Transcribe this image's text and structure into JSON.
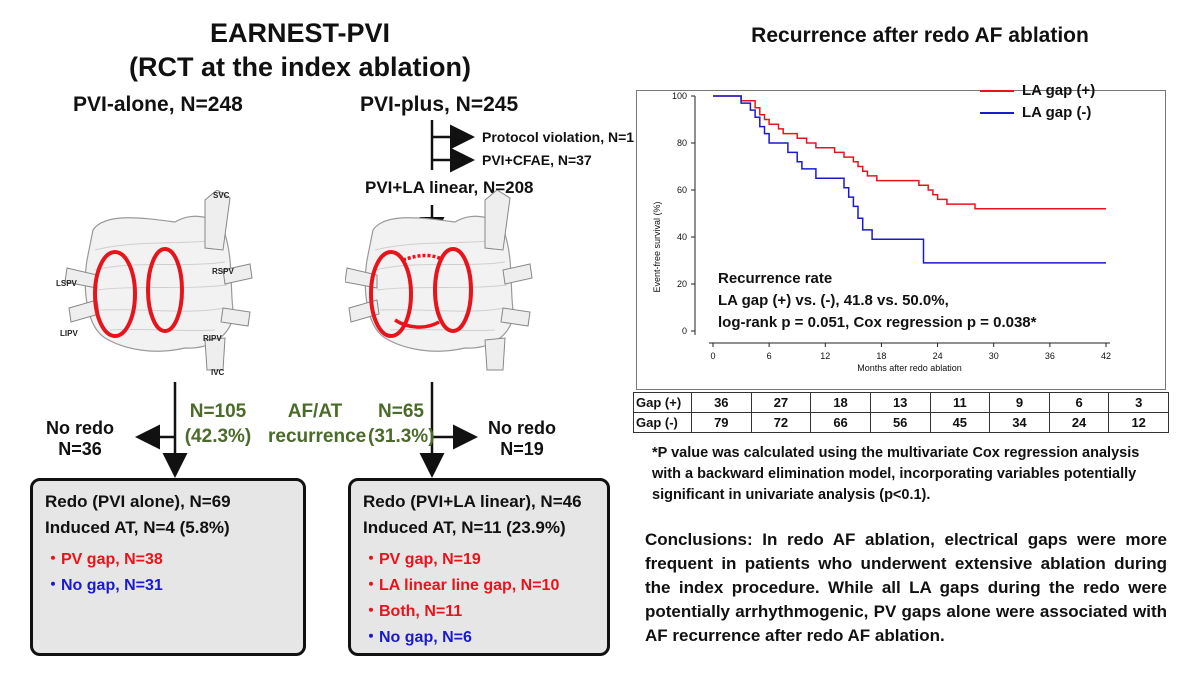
{
  "left": {
    "title_line1": "EARNEST-PVI",
    "title_line2": "(RCT at the index ablation)",
    "arm_left": "PVI-alone, N=248",
    "arm_right": "PVI-plus, N=245",
    "branch1": "Protocol violation, N=1",
    "branch2": "PVI+CFAE, N=37",
    "pvi_la_linear": "PVI+LA linear, N=208",
    "anatomy": {
      "svc": "SVC",
      "lspv": "LSPV",
      "rspv": "RSPV",
      "lipv": "LIPV",
      "ripv": "RIPV",
      "ivc": "IVC"
    },
    "no_redo_left": "No redo",
    "no_redo_left_n": "N=36",
    "rec_left_n": "N=105",
    "rec_left_pct": "(42.3%)",
    "recurrence_label1": "AF/AT",
    "recurrence_label2": "recurrence",
    "rec_right_n": "N=65",
    "rec_right_pct": "(31.3%)",
    "no_redo_right": "No redo",
    "no_redo_right_n": "N=19",
    "box_left": {
      "line1": "Redo (PVI alone), N=69",
      "line2": "Induced AT, N=4 (5.8%)",
      "items": [
        {
          "text": "・PV gap, N=38",
          "color": "#e8141b"
        },
        {
          "text": "・No gap, N=31",
          "color": "#1a1acc"
        }
      ]
    },
    "box_right": {
      "line1": "Redo (PVI+LA linear), N=46",
      "line2": "Induced AT, N=11 (23.9%)",
      "items": [
        {
          "text": "・PV gap, N=19",
          "color": "#e8141b"
        },
        {
          "text": "・LA linear line gap, N=10",
          "color": "#e8141b"
        },
        {
          "text": "・Both, N=11",
          "color": "#e8141b"
        },
        {
          "text": "・No gap, N=6",
          "color": "#1a1acc"
        }
      ]
    }
  },
  "chart_data": {
    "type": "line",
    "title": "Recurrence after redo AF ablation",
    "xlabel": "Months after redo ablation",
    "ylabel": "Event-free survival (%)",
    "xlim": [
      0,
      42
    ],
    "ylim": [
      0,
      100
    ],
    "xticks": [
      0,
      6,
      12,
      18,
      24,
      30,
      36,
      42
    ],
    "yticks": [
      0,
      20,
      40,
      60,
      80,
      100
    ],
    "series": [
      {
        "name": "LA gap (+)",
        "color": "#e8141b",
        "steps": [
          [
            0,
            100
          ],
          [
            3,
            100
          ],
          [
            3,
            98
          ],
          [
            4.5,
            98
          ],
          [
            4.5,
            95
          ],
          [
            5,
            95
          ],
          [
            5,
            92
          ],
          [
            5.5,
            92
          ],
          [
            5.5,
            90
          ],
          [
            6,
            90
          ],
          [
            6,
            88
          ],
          [
            7,
            88
          ],
          [
            7,
            86
          ],
          [
            7.5,
            86
          ],
          [
            7.5,
            84
          ],
          [
            9,
            84
          ],
          [
            9,
            82
          ],
          [
            10,
            82
          ],
          [
            10,
            80
          ],
          [
            11,
            80
          ],
          [
            11,
            78
          ],
          [
            13,
            78
          ],
          [
            13,
            76
          ],
          [
            14,
            76
          ],
          [
            14,
            74
          ],
          [
            15,
            74
          ],
          [
            15,
            72
          ],
          [
            15.5,
            72
          ],
          [
            15.5,
            70
          ],
          [
            16,
            70
          ],
          [
            16,
            68
          ],
          [
            16.5,
            68
          ],
          [
            16.5,
            66
          ],
          [
            17.5,
            66
          ],
          [
            17.5,
            64
          ],
          [
            22,
            64
          ],
          [
            22,
            62
          ],
          [
            23,
            62
          ],
          [
            23,
            60
          ],
          [
            23.5,
            60
          ],
          [
            23.5,
            58
          ],
          [
            24,
            58
          ],
          [
            24,
            56
          ],
          [
            25,
            56
          ],
          [
            25,
            54
          ],
          [
            28,
            54
          ],
          [
            28,
            52
          ],
          [
            42,
            52
          ]
        ]
      },
      {
        "name": "LA gap (-)",
        "color": "#1a1acc",
        "steps": [
          [
            0,
            100
          ],
          [
            3,
            100
          ],
          [
            3,
            97
          ],
          [
            4,
            97
          ],
          [
            4,
            94
          ],
          [
            4.5,
            94
          ],
          [
            4.5,
            91
          ],
          [
            5,
            91
          ],
          [
            5,
            87
          ],
          [
            5.5,
            87
          ],
          [
            5.5,
            84
          ],
          [
            6,
            84
          ],
          [
            6,
            80
          ],
          [
            8,
            80
          ],
          [
            8,
            76
          ],
          [
            9,
            76
          ],
          [
            9,
            72
          ],
          [
            9.5,
            72
          ],
          [
            9.5,
            69
          ],
          [
            11,
            69
          ],
          [
            11,
            65
          ],
          [
            14,
            65
          ],
          [
            14,
            61
          ],
          [
            14.5,
            61
          ],
          [
            14.5,
            57
          ],
          [
            15,
            57
          ],
          [
            15,
            53
          ],
          [
            15.5,
            53
          ],
          [
            15.5,
            48
          ],
          [
            16,
            48
          ],
          [
            16,
            43
          ],
          [
            17,
            43
          ],
          [
            17,
            39
          ],
          [
            22.5,
            39
          ],
          [
            22.5,
            29
          ],
          [
            42,
            29
          ]
        ]
      }
    ],
    "annotation_line1": "Recurrence rate",
    "annotation_line2": "LA gap (+) vs. (-), 41.8 vs. 50.0%,",
    "annotation_line3": "log-rank p = 0.051, Cox regression p = 0.038*",
    "risk_table": [
      {
        "label": "Gap (+)",
        "values": [
          36,
          27,
          18,
          13,
          11,
          9,
          6,
          3
        ]
      },
      {
        "label": "Gap (-)",
        "values": [
          79,
          72,
          66,
          56,
          45,
          34,
          24,
          12
        ]
      }
    ]
  },
  "footnote": "*P value was calculated using the multivariate Cox regression analysis with a backward elimination model, incorporating variables potentially significant in univariate analysis (p<0.1).",
  "conclusion": "Conclusions: In redo AF ablation, electrical gaps were more frequent in patients who underwent extensive ablation during the index procedure. While all LA gaps during the redo were potentially arrhythmogenic, PV gaps alone were associated with AF recurrence after redo AF ablation."
}
